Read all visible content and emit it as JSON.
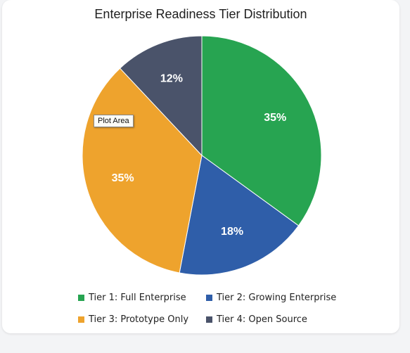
{
  "chart_data": {
    "type": "pie",
    "title": "Enterprise Readiness Tier Distribution",
    "slices": [
      {
        "name": "Tier 1: Full Enterprise",
        "value": 35,
        "label": "35%",
        "color": "#27a451"
      },
      {
        "name": "Tier 2: Growing Enterprise",
        "value": 18,
        "label": "18%",
        "color": "#2f5ea9"
      },
      {
        "name": "Tier 3: Prototype Only",
        "value": 35,
        "label": "35%",
        "color": "#eea32d"
      },
      {
        "name": "Tier 4: Open Source",
        "value": 12,
        "label": "12%",
        "color": "#4a536a"
      }
    ],
    "legend_position": "bottom"
  },
  "tooltip": {
    "text": "Plot Area"
  }
}
